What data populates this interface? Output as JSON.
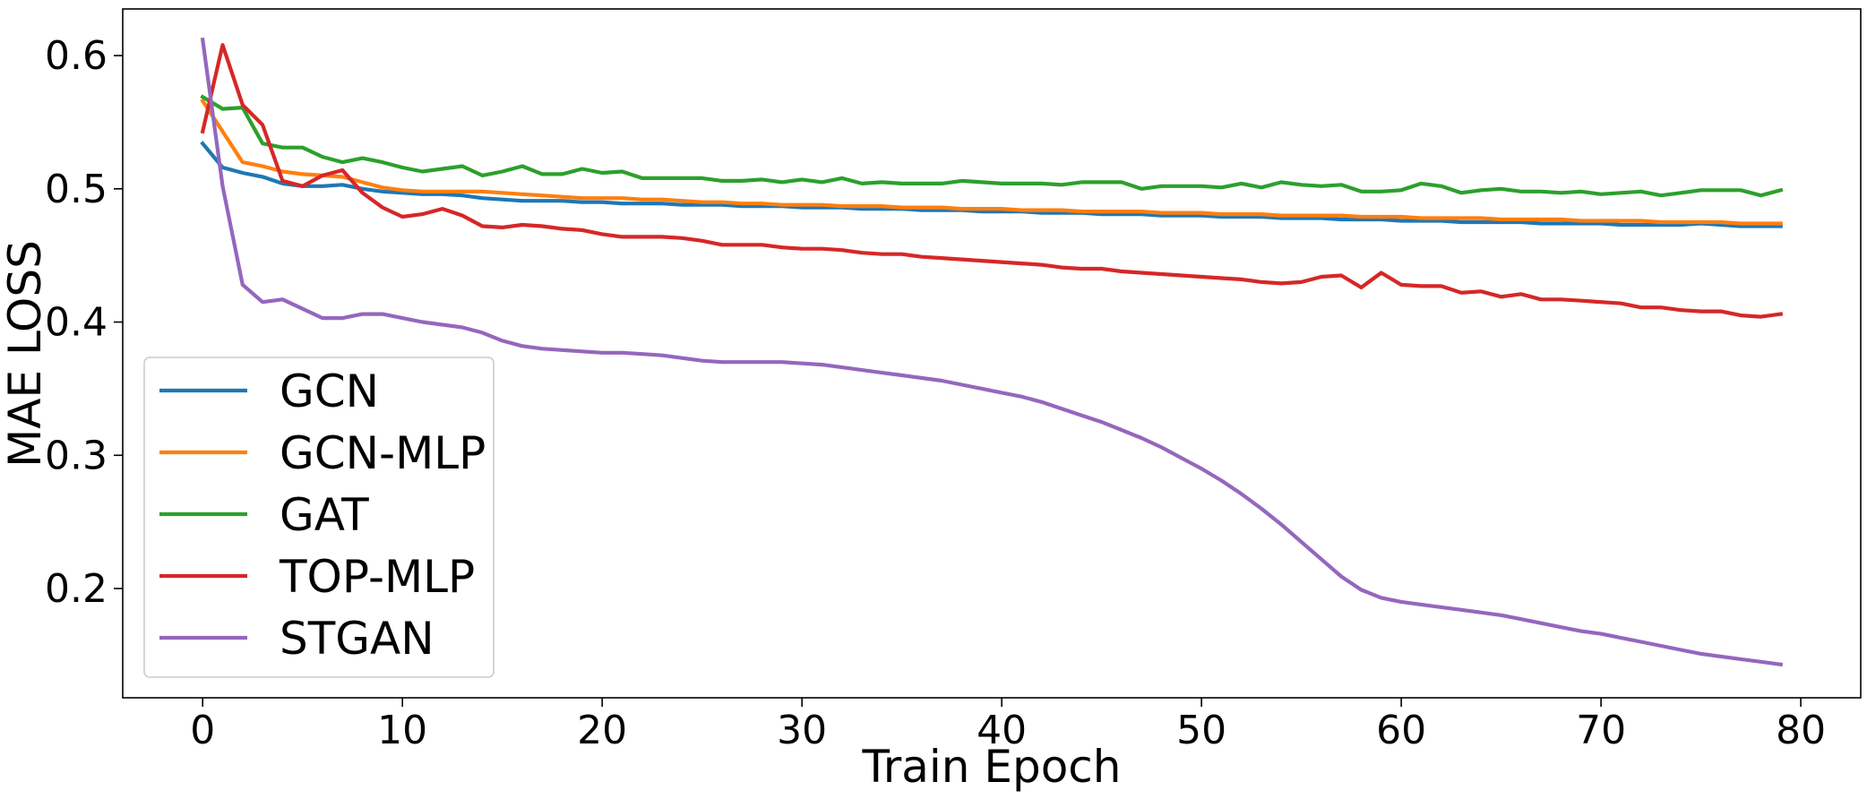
{
  "chart_data": {
    "type": "line",
    "title": "",
    "xlabel": "Train Epoch",
    "ylabel": "MAE LOSS",
    "xlim": [
      -4,
      83
    ],
    "ylim": [
      0.118,
      0.635
    ],
    "xticks": [
      0,
      10,
      20,
      30,
      40,
      50,
      60,
      70,
      80
    ],
    "xtick_labels": [
      "0",
      "10",
      "20",
      "30",
      "40",
      "50",
      "60",
      "70",
      "80"
    ],
    "yticks": [
      0.2,
      0.3,
      0.4,
      0.5,
      0.6
    ],
    "ytick_labels": [
      "0.2",
      "0.3",
      "0.4",
      "0.5",
      "0.6"
    ],
    "grid": false,
    "legend_position": "lower-left",
    "x": [
      0,
      1,
      2,
      3,
      4,
      5,
      6,
      7,
      8,
      9,
      10,
      11,
      12,
      13,
      14,
      15,
      16,
      17,
      18,
      19,
      20,
      21,
      22,
      23,
      24,
      25,
      26,
      27,
      28,
      29,
      30,
      31,
      32,
      33,
      34,
      35,
      36,
      37,
      38,
      39,
      40,
      41,
      42,
      43,
      44,
      45,
      46,
      47,
      48,
      49,
      50,
      51,
      52,
      53,
      54,
      55,
      56,
      57,
      58,
      59,
      60,
      61,
      62,
      63,
      64,
      65,
      66,
      67,
      68,
      69,
      70,
      71,
      72,
      73,
      74,
      75,
      76,
      77,
      78,
      79
    ],
    "series": [
      {
        "name": "GCN",
        "color": "#1f77b4",
        "values": [
          0.534,
          0.516,
          0.512,
          0.509,
          0.504,
          0.502,
          0.502,
          0.503,
          0.5,
          0.498,
          0.497,
          0.496,
          0.496,
          0.495,
          0.493,
          0.492,
          0.491,
          0.491,
          0.491,
          0.49,
          0.49,
          0.489,
          0.489,
          0.489,
          0.488,
          0.488,
          0.488,
          0.487,
          0.487,
          0.487,
          0.486,
          0.486,
          0.486,
          0.485,
          0.485,
          0.485,
          0.484,
          0.484,
          0.484,
          0.483,
          0.483,
          0.483,
          0.482,
          0.482,
          0.482,
          0.481,
          0.481,
          0.481,
          0.48,
          0.48,
          0.48,
          0.479,
          0.479,
          0.479,
          0.478,
          0.478,
          0.478,
          0.477,
          0.477,
          0.477,
          0.476,
          0.476,
          0.476,
          0.475,
          0.475,
          0.475,
          0.475,
          0.474,
          0.474,
          0.474,
          0.474,
          0.473,
          0.473,
          0.473,
          0.473,
          0.474,
          0.473,
          0.472,
          0.472,
          0.472
        ]
      },
      {
        "name": "GCN-MLP",
        "color": "#ff7f0e",
        "values": [
          0.566,
          0.543,
          0.52,
          0.517,
          0.513,
          0.511,
          0.51,
          0.509,
          0.505,
          0.501,
          0.499,
          0.498,
          0.498,
          0.498,
          0.498,
          0.497,
          0.496,
          0.495,
          0.494,
          0.493,
          0.493,
          0.493,
          0.492,
          0.492,
          0.491,
          0.49,
          0.49,
          0.489,
          0.489,
          0.488,
          0.488,
          0.488,
          0.487,
          0.487,
          0.487,
          0.486,
          0.486,
          0.486,
          0.485,
          0.485,
          0.485,
          0.484,
          0.484,
          0.484,
          0.483,
          0.483,
          0.483,
          0.483,
          0.482,
          0.482,
          0.482,
          0.481,
          0.481,
          0.481,
          0.48,
          0.48,
          0.48,
          0.48,
          0.479,
          0.479,
          0.479,
          0.478,
          0.478,
          0.478,
          0.478,
          0.477,
          0.477,
          0.477,
          0.477,
          0.476,
          0.476,
          0.476,
          0.476,
          0.475,
          0.475,
          0.475,
          0.475,
          0.474,
          0.474,
          0.474
        ]
      },
      {
        "name": "GAT",
        "color": "#2ca02c",
        "values": [
          0.569,
          0.56,
          0.561,
          0.534,
          0.531,
          0.531,
          0.524,
          0.52,
          0.523,
          0.52,
          0.516,
          0.513,
          0.515,
          0.517,
          0.51,
          0.513,
          0.517,
          0.511,
          0.511,
          0.515,
          0.512,
          0.513,
          0.508,
          0.508,
          0.508,
          0.508,
          0.506,
          0.506,
          0.507,
          0.505,
          0.507,
          0.505,
          0.508,
          0.504,
          0.505,
          0.504,
          0.504,
          0.504,
          0.506,
          0.505,
          0.504,
          0.504,
          0.504,
          0.503,
          0.505,
          0.505,
          0.505,
          0.5,
          0.502,
          0.502,
          0.502,
          0.501,
          0.504,
          0.501,
          0.505,
          0.503,
          0.502,
          0.503,
          0.498,
          0.498,
          0.499,
          0.504,
          0.502,
          0.497,
          0.499,
          0.5,
          0.498,
          0.498,
          0.497,
          0.498,
          0.496,
          0.497,
          0.498,
          0.495,
          0.497,
          0.499,
          0.499,
          0.499,
          0.495,
          0.499
        ]
      },
      {
        "name": "TOP-MLP",
        "color": "#d62728",
        "values": [
          0.543,
          0.608,
          0.563,
          0.548,
          0.506,
          0.502,
          0.51,
          0.514,
          0.497,
          0.486,
          0.479,
          0.481,
          0.485,
          0.48,
          0.472,
          0.471,
          0.473,
          0.472,
          0.47,
          0.469,
          0.466,
          0.464,
          0.464,
          0.464,
          0.463,
          0.461,
          0.458,
          0.458,
          0.458,
          0.456,
          0.455,
          0.455,
          0.454,
          0.452,
          0.451,
          0.451,
          0.449,
          0.448,
          0.447,
          0.446,
          0.445,
          0.444,
          0.443,
          0.441,
          0.44,
          0.44,
          0.438,
          0.437,
          0.436,
          0.435,
          0.434,
          0.433,
          0.432,
          0.43,
          0.429,
          0.43,
          0.434,
          0.435,
          0.426,
          0.437,
          0.428,
          0.427,
          0.427,
          0.422,
          0.423,
          0.419,
          0.421,
          0.417,
          0.417,
          0.416,
          0.415,
          0.414,
          0.411,
          0.411,
          0.409,
          0.408,
          0.408,
          0.405,
          0.404,
          0.406
        ]
      },
      {
        "name": "STGAN",
        "color": "#9467bd",
        "values": [
          0.612,
          0.502,
          0.428,
          0.415,
          0.417,
          0.41,
          0.403,
          0.403,
          0.406,
          0.406,
          0.403,
          0.4,
          0.398,
          0.396,
          0.392,
          0.386,
          0.382,
          0.38,
          0.379,
          0.378,
          0.377,
          0.377,
          0.376,
          0.375,
          0.373,
          0.371,
          0.37,
          0.37,
          0.37,
          0.37,
          0.369,
          0.368,
          0.366,
          0.364,
          0.362,
          0.36,
          0.358,
          0.356,
          0.353,
          0.35,
          0.347,
          0.344,
          0.34,
          0.335,
          0.33,
          0.325,
          0.319,
          0.313,
          0.306,
          0.298,
          0.29,
          0.281,
          0.271,
          0.26,
          0.248,
          0.235,
          0.222,
          0.209,
          0.199,
          0.193,
          0.19,
          0.188,
          0.186,
          0.184,
          0.182,
          0.18,
          0.177,
          0.174,
          0.171,
          0.168,
          0.166,
          0.163,
          0.16,
          0.157,
          0.154,
          0.151,
          0.149,
          0.147,
          0.145,
          0.143
        ]
      }
    ]
  }
}
